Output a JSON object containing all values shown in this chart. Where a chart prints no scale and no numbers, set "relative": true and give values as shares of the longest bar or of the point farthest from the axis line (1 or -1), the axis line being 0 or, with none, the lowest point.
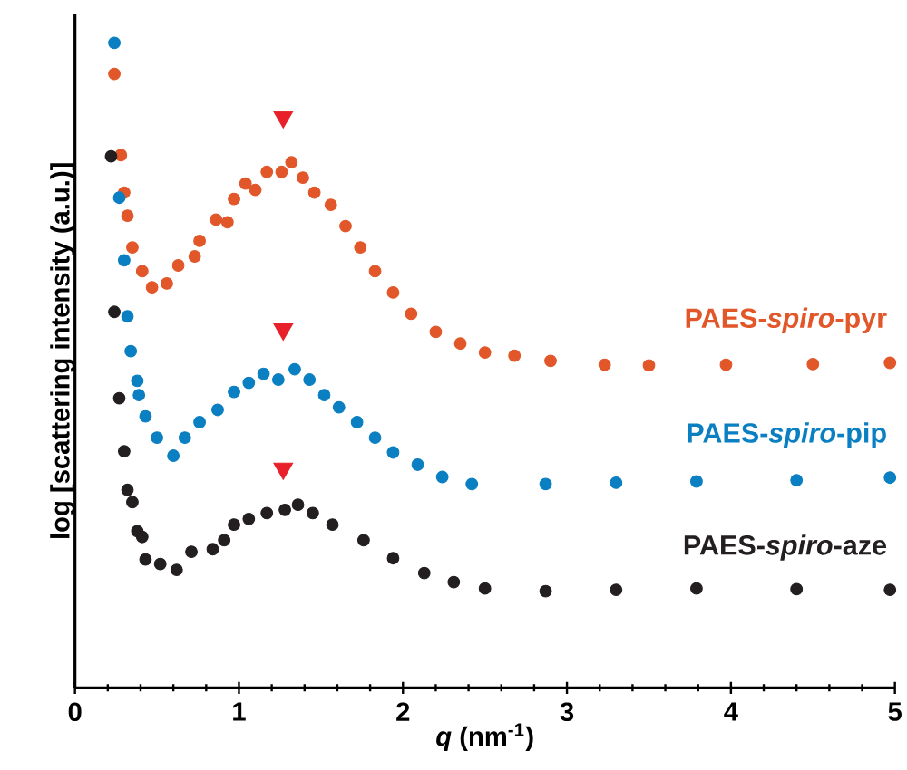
{
  "chart_data": {
    "type": "scatter",
    "relative": true,
    "xlabel": "*q* (nm$^{-1}$)",
    "ylabel": "log [scattering intensity (a.u.)]",
    "xlim": [
      0,
      5
    ],
    "xticks": [
      0,
      1,
      2,
      3,
      4,
      5
    ],
    "grid": false,
    "series": [
      {
        "name": "PAES-*spiro*-pyr",
        "color": "#e2572a",
        "marker": "circle",
        "x": [
          0.24,
          0.28,
          0.3,
          0.32,
          0.35,
          0.41,
          0.47,
          0.56,
          0.63,
          0.73,
          0.76,
          0.86,
          0.93,
          0.97,
          1.04,
          1.1,
          1.17,
          1.26,
          1.32,
          1.39,
          1.46,
          1.56,
          1.65,
          1.74,
          1.83,
          1.94,
          2.05,
          2.2,
          2.35,
          2.5,
          2.68,
          2.9,
          3.23,
          3.5,
          3.97,
          4.5,
          4.97
        ],
        "values": [
          0.952,
          0.826,
          0.768,
          0.732,
          0.683,
          0.646,
          0.621,
          0.627,
          0.655,
          0.669,
          0.693,
          0.726,
          0.722,
          0.758,
          0.782,
          0.772,
          0.8,
          0.8,
          0.815,
          0.791,
          0.768,
          0.749,
          0.716,
          0.683,
          0.646,
          0.613,
          0.58,
          0.552,
          0.534,
          0.52,
          0.515,
          0.507,
          0.501,
          0.5,
          0.501,
          0.502,
          0.504
        ]
      },
      {
        "name": "PAES-*spiro*-pip",
        "color": "#0a7fc1",
        "marker": "circle",
        "x": [
          0.24,
          0.27,
          0.3,
          0.32,
          0.34,
          0.38,
          0.39,
          0.43,
          0.5,
          0.6,
          0.67,
          0.76,
          0.87,
          0.97,
          1.06,
          1.15,
          1.24,
          1.34,
          1.43,
          1.52,
          1.61,
          1.72,
          1.83,
          1.94,
          2.09,
          2.24,
          2.42,
          2.87,
          3.3,
          3.79,
          4.4,
          4.97
        ],
        "values": [
          1.0,
          0.76,
          0.663,
          0.576,
          0.522,
          0.476,
          0.454,
          0.421,
          0.388,
          0.36,
          0.388,
          0.412,
          0.431,
          0.459,
          0.473,
          0.487,
          0.478,
          0.494,
          0.478,
          0.454,
          0.435,
          0.412,
          0.388,
          0.365,
          0.346,
          0.327,
          0.316,
          0.316,
          0.318,
          0.32,
          0.322,
          0.326
        ]
      },
      {
        "name": "PAES-*spiro*-aze",
        "color": "#231f20",
        "marker": "circle",
        "x": [
          0.22,
          0.24,
          0.27,
          0.3,
          0.32,
          0.35,
          0.38,
          0.41,
          0.43,
          0.52,
          0.62,
          0.71,
          0.84,
          0.91,
          0.97,
          1.06,
          1.17,
          1.28,
          1.36,
          1.45,
          1.57,
          1.76,
          1.94,
          2.13,
          2.31,
          2.5,
          2.87,
          3.3,
          3.79,
          4.4,
          4.97
        ],
        "values": [
          0.824,
          0.583,
          0.449,
          0.367,
          0.307,
          0.288,
          0.243,
          0.234,
          0.199,
          0.192,
          0.183,
          0.211,
          0.215,
          0.229,
          0.253,
          0.262,
          0.271,
          0.276,
          0.284,
          0.271,
          0.253,
          0.229,
          0.201,
          0.178,
          0.164,
          0.154,
          0.15,
          0.152,
          0.154,
          0.153,
          0.152
        ]
      },
      {
        "color": "#e8202a",
        "marker": "triangle",
        "x": [
          1.27,
          1.27,
          1.27
        ],
        "values": [
          0.885,
          0.556,
          0.34
        ]
      }
    ]
  }
}
